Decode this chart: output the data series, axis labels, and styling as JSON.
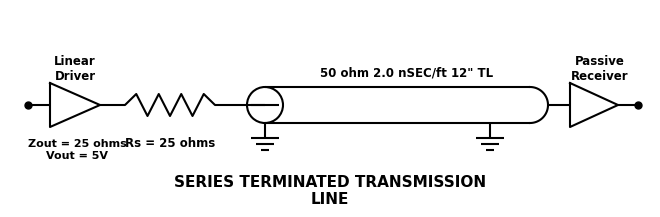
{
  "title_line1": "SERIES TERMINATED TRANSMISSION",
  "title_line2": "LINE",
  "label_linear_driver": "Linear\nDriver",
  "label_passive_receiver": "Passive\nReceiver",
  "label_tl": "50 ohm 2.0 nSEC/ft 12\" TL",
  "label_zout": "Zout = 25 ohms\nVout = 5V",
  "label_rs": "Rs = 25 ohms",
  "bg_color": "#ffffff",
  "line_color": "#000000",
  "title_fontsize": 11,
  "label_fontsize": 8.5,
  "fig_width": 6.6,
  "fig_height": 2.17,
  "dpi": 100
}
